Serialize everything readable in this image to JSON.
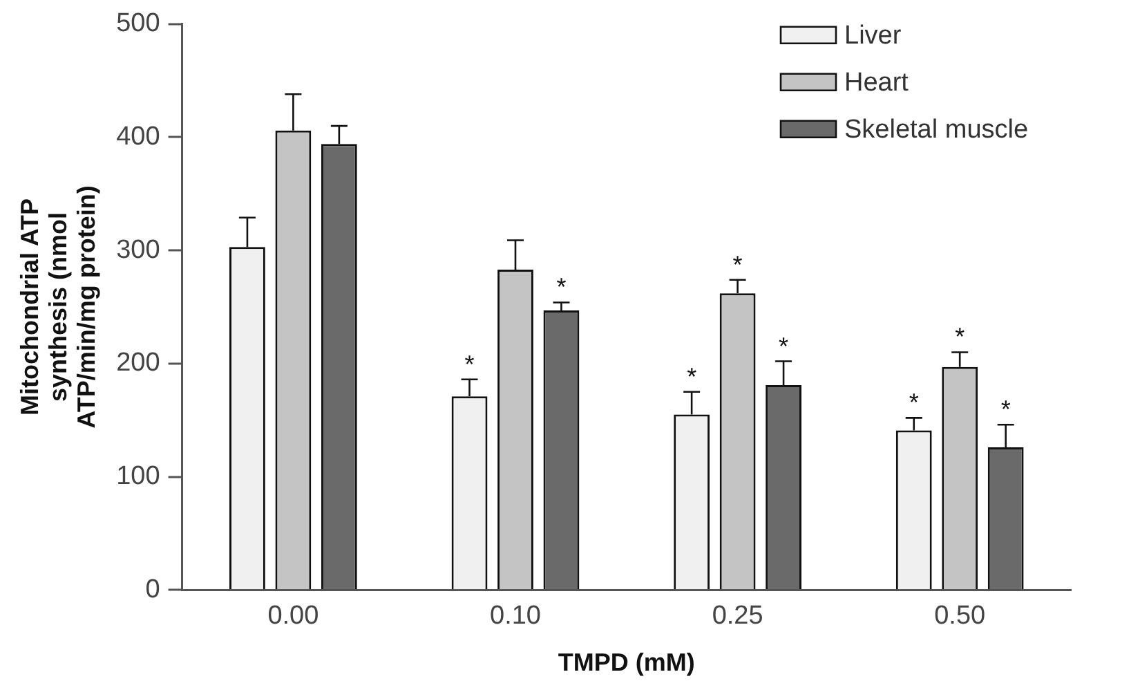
{
  "chart_data": {
    "type": "bar",
    "xlabel": "TMPD (mM)",
    "ylabel": "Mitochondrial ATP synthesis (nmol ATP/min/mg protein)",
    "categories": [
      "0.00",
      "0.10",
      "0.25",
      "0.50"
    ],
    "series": [
      {
        "name": "Liver",
        "color": "#f0f0f0",
        "values": [
          303,
          171,
          155,
          141
        ],
        "errors": [
          [
            303,
            329
          ],
          [
            171,
            186
          ],
          [
            155,
            175
          ],
          [
            141,
            152
          ]
        ],
        "value_labels": [
          null,
          "*",
          "*",
          "*"
        ]
      },
      {
        "name": "Heart",
        "color": "#c4c4c4",
        "values": [
          406,
          283,
          262,
          197
        ],
        "errors": [
          [
            406,
            438
          ],
          [
            283,
            309
          ],
          [
            262,
            274
          ],
          [
            197,
            210
          ]
        ],
        "value_labels": [
          null,
          null,
          "*",
          "*"
        ]
      },
      {
        "name": "Skeletal muscle",
        "color": "#6a6a6a",
        "values": [
          394,
          247,
          181,
          126
        ],
        "errors": [
          [
            394,
            410
          ],
          [
            247,
            254
          ],
          [
            181,
            202
          ],
          [
            126,
            146
          ]
        ],
        "value_labels": [
          null,
          "*",
          "*",
          "*"
        ]
      }
    ],
    "ylim": [
      0,
      500
    ],
    "yticks": [
      0,
      100,
      200,
      300,
      400,
      500
    ],
    "grid": false,
    "legend": "top right"
  }
}
